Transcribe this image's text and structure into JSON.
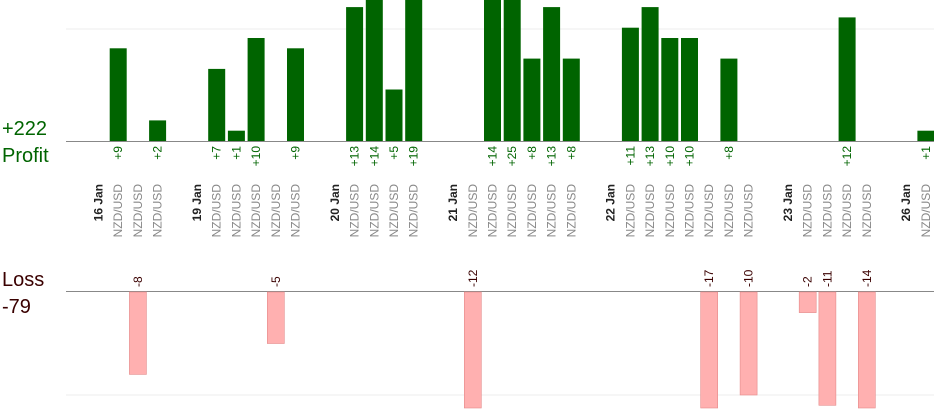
{
  "summary": {
    "profit_value": "+222",
    "profit_label": "Profit",
    "loss_label": "Loss",
    "loss_value": "-79"
  },
  "colors": {
    "profit_bar": "#006400",
    "loss_bar": "#ffb0b0",
    "profit_text": "#006400",
    "loss_text": "#3a0000",
    "date_text": "#222222",
    "pair_text": "#888888"
  },
  "chart_data": {
    "type": "bar",
    "title": "",
    "columns": [
      {
        "kind": "date",
        "label": "16 Jan"
      },
      {
        "kind": "trade",
        "label": "NZD/USD",
        "value": 9
      },
      {
        "kind": "trade",
        "label": "NZD/USD",
        "value": -8
      },
      {
        "kind": "trade",
        "label": "NZD/USD",
        "value": 2
      },
      {
        "kind": "gap"
      },
      {
        "kind": "date",
        "label": "19 Jan"
      },
      {
        "kind": "trade",
        "label": "NZD/USD",
        "value": 7
      },
      {
        "kind": "trade",
        "label": "NZD/USD",
        "value": 1
      },
      {
        "kind": "trade",
        "label": "NZD/USD",
        "value": 10
      },
      {
        "kind": "trade",
        "label": "NZD/USD",
        "value": -5
      },
      {
        "kind": "trade",
        "label": "NZD/USD",
        "value": 9
      },
      {
        "kind": "gap"
      },
      {
        "kind": "date",
        "label": "20 Jan"
      },
      {
        "kind": "trade",
        "label": "NZD/USD",
        "value": 13
      },
      {
        "kind": "trade",
        "label": "NZD/USD",
        "value": 14
      },
      {
        "kind": "trade",
        "label": "NZD/USD",
        "value": 5
      },
      {
        "kind": "trade",
        "label": "NZD/USD",
        "value": 19
      },
      {
        "kind": "gap"
      },
      {
        "kind": "date",
        "label": "21 Jan"
      },
      {
        "kind": "trade",
        "label": "NZD/USD",
        "value": -12
      },
      {
        "kind": "trade",
        "label": "NZD/USD",
        "value": 14
      },
      {
        "kind": "trade",
        "label": "NZD/USD",
        "value": 25
      },
      {
        "kind": "trade",
        "label": "NZD/USD",
        "value": 8
      },
      {
        "kind": "trade",
        "label": "NZD/USD",
        "value": 13
      },
      {
        "kind": "trade",
        "label": "NZD/USD",
        "value": 8
      },
      {
        "kind": "gap"
      },
      {
        "kind": "date",
        "label": "22 Jan"
      },
      {
        "kind": "trade",
        "label": "NZD/USD",
        "value": 11
      },
      {
        "kind": "trade",
        "label": "NZD/USD",
        "value": 13
      },
      {
        "kind": "trade",
        "label": "NZD/USD",
        "value": 10
      },
      {
        "kind": "trade",
        "label": "NZD/USD",
        "value": 10
      },
      {
        "kind": "trade",
        "label": "NZD/USD",
        "value": -17
      },
      {
        "kind": "trade",
        "label": "NZD/USD",
        "value": 8
      },
      {
        "kind": "trade",
        "label": "NZD/USD",
        "value": -10
      },
      {
        "kind": "gap"
      },
      {
        "kind": "date",
        "label": "23 Jan"
      },
      {
        "kind": "trade",
        "label": "NZD/USD",
        "value": -2
      },
      {
        "kind": "trade",
        "label": "NZD/USD",
        "value": -11
      },
      {
        "kind": "trade",
        "label": "NZD/USD",
        "value": 12
      },
      {
        "kind": "trade",
        "label": "NZD/USD",
        "value": -14
      },
      {
        "kind": "gap"
      },
      {
        "kind": "date",
        "label": "26 Jan"
      },
      {
        "kind": "trade",
        "label": "NZD/USD",
        "value": 1
      }
    ],
    "profit_scale_max": 10,
    "loss_scale_min": -10,
    "grid": true,
    "legend": "none"
  }
}
